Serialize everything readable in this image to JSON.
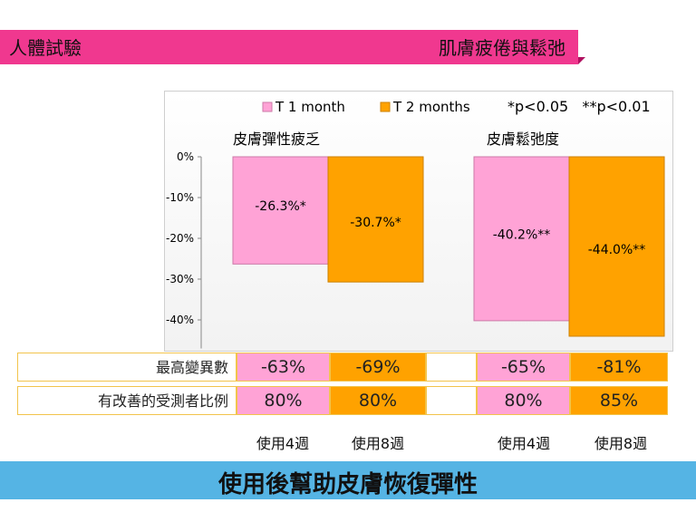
{
  "header": {
    "left": "人體試驗",
    "right": "肌膚疲倦與鬆弛"
  },
  "footer": {
    "text": "使用後幫助皮膚恢復彈性"
  },
  "legend": {
    "s1": "T 1 month",
    "s2": "T 2 months",
    "sig": "*p<0.05   **p<0.01"
  },
  "colors": {
    "s1": "#ffa3d6",
    "s2": "#ffa200",
    "s1_edge": "#cc7aa8",
    "s2_edge": "#cc8000"
  },
  "chart_data": {
    "type": "bar",
    "groups": [
      "皮膚彈性疲乏",
      "皮膚鬆弛度"
    ],
    "series": [
      {
        "name": "T 1 month",
        "values": [
          -26.3,
          -40.2
        ],
        "labels": [
          "-26.3%*",
          "-40.2%**"
        ]
      },
      {
        "name": "T 2 months",
        "values": [
          -30.7,
          -44.0
        ],
        "labels": [
          "-30.7%*",
          "-44.0%**"
        ]
      }
    ],
    "yticks": [
      "0%",
      "-10%",
      "-20%",
      "-30%",
      "-40%"
    ],
    "ytick_values": [
      0,
      -10,
      -20,
      -30,
      -40
    ],
    "ylim": [
      -47,
      0
    ],
    "legend": "top"
  },
  "table": {
    "rows": [
      {
        "label": "最高變異數",
        "values": [
          "-63%",
          "-69%",
          "-65%",
          "-81%"
        ]
      },
      {
        "label": "有改善的受測者比例",
        "values": [
          "80%",
          "80%",
          "80%",
          "85%"
        ]
      }
    ],
    "weeks": [
      "使用4週",
      "使用8週",
      "使用4週",
      "使用8週"
    ]
  }
}
